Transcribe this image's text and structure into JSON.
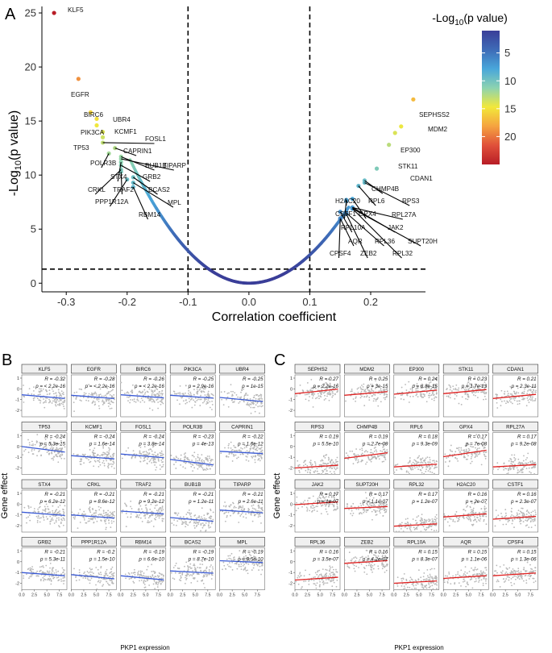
{
  "panel_labels": {
    "a": "A",
    "b": "B",
    "c": "C"
  },
  "colors": {
    "gradient": [
      "#3a3e98",
      "#3e6bb7",
      "#49a7da",
      "#8dd3b0",
      "#f2e83a",
      "#f5a340",
      "#e0503a",
      "#b81d26"
    ],
    "neg_fit": "#3b5bd6",
    "pos_fit": "#e02020",
    "points_small": "#b8b8b8",
    "curve_low": "#3a3e98",
    "curve_high": "#5bbfe5"
  },
  "chart_data": [
    {
      "panel": "A",
      "type": "scatter",
      "title": "",
      "xlabel": "Correlation coefficient",
      "ylabel_main": "-Log",
      "ylabel_sub": "10",
      "ylabel_rest": "(p value)",
      "xlim": [
        -0.34,
        0.29
      ],
      "ylim": [
        -0.8,
        25.6
      ],
      "x_ticks": [
        -0.3,
        -0.2,
        -0.1,
        0.0,
        0.1,
        0.2
      ],
      "x_tick_labels": [
        "-0.3",
        "-0.2",
        "-0.1",
        "0.0",
        "0.1",
        "0.2"
      ],
      "y_ticks": [
        0,
        5,
        10,
        15,
        20,
        25
      ],
      "y_tick_labels": [
        "0",
        "5",
        "10",
        "15",
        "20",
        "25"
      ],
      "vlines": [
        -0.1,
        0.1
      ],
      "hline": 1.3,
      "legend": {
        "title_main": "-Log",
        "title_sub": "10",
        "title_rest": "(p value)",
        "range": [
          1,
          25
        ],
        "ticks": [
          5,
          10,
          15,
          20
        ],
        "tick_labels": [
          "5",
          "10",
          "15",
          "20"
        ],
        "placement": "right"
      },
      "labeled_points": [
        {
          "label": "KLF5",
          "x": -0.32,
          "y": 25.0
        },
        {
          "label": "EGFR",
          "x": -0.28,
          "y": 18.9
        },
        {
          "label": "BIRC6",
          "x": -0.26,
          "y": 15.8
        },
        {
          "label": "UBR4",
          "x": -0.25,
          "y": 15.2
        },
        {
          "label": "PIK3CA",
          "x": -0.25,
          "y": 14.6
        },
        {
          "label": "KCMF1",
          "x": -0.24,
          "y": 14.0
        },
        {
          "label": "TP53",
          "x": -0.24,
          "y": 13.5
        },
        {
          "label": "FOSL1",
          "x": -0.24,
          "y": 13.0
        },
        {
          "label": "CAPRIN1",
          "x": -0.22,
          "y": 12.5
        },
        {
          "label": "POLR3B",
          "x": -0.23,
          "y": 12.0
        },
        {
          "label": "BUB1B",
          "x": -0.21,
          "y": 11.7
        },
        {
          "label": "TIPARP",
          "x": -0.21,
          "y": 11.5
        },
        {
          "label": "STX4",
          "x": -0.21,
          "y": 11.2
        },
        {
          "label": "GRB2",
          "x": -0.21,
          "y": 10.9
        },
        {
          "label": "CRKL",
          "x": -0.21,
          "y": 10.5
        },
        {
          "label": "TRAF2",
          "x": -0.21,
          "y": 10.3
        },
        {
          "label": "BCAS2",
          "x": -0.19,
          "y": 9.8
        },
        {
          "label": "PPP1R12A",
          "x": -0.2,
          "y": 9.6
        },
        {
          "label": "MPL",
          "x": -0.19,
          "y": 9.3
        },
        {
          "label": "RBM14",
          "x": -0.19,
          "y": 8.9
        },
        {
          "label": "SEPHSS2",
          "x": 0.27,
          "y": 17.0
        },
        {
          "label": "MDM2",
          "x": 0.25,
          "y": 14.5
        },
        {
          "label": "EP300",
          "x": 0.24,
          "y": 13.9
        },
        {
          "label": "STK11",
          "x": 0.23,
          "y": 12.8
        },
        {
          "label": "CDAN1",
          "x": 0.21,
          "y": 10.6
        },
        {
          "label": "CHMP4B",
          "x": 0.19,
          "y": 9.5
        },
        {
          "label": "RPS3",
          "x": 0.19,
          "y": 9.3
        },
        {
          "label": "RPL6",
          "x": 0.18,
          "y": 9.0
        },
        {
          "label": "H2AC20",
          "x": 0.16,
          "y": 7.7
        },
        {
          "label": "GPX4",
          "x": 0.17,
          "y": 7.8
        },
        {
          "label": "RPL27A",
          "x": 0.17,
          "y": 7.0
        },
        {
          "label": "CSTF1",
          "x": 0.16,
          "y": 7.6
        },
        {
          "label": "JAK2",
          "x": 0.17,
          "y": 7.0
        },
        {
          "label": "RPL10A",
          "x": 0.15,
          "y": 6.6
        },
        {
          "label": "RPL36",
          "x": 0.16,
          "y": 6.5
        },
        {
          "label": "SUPT20H",
          "x": 0.17,
          "y": 6.9
        },
        {
          "label": "AQR",
          "x": 0.15,
          "y": 6.0
        },
        {
          "label": "CPSF4",
          "x": 0.15,
          "y": 5.9
        },
        {
          "label": "ZEB2",
          "x": 0.16,
          "y": 6.4
        },
        {
          "label": "RPL32",
          "x": 0.17,
          "y": 6.9
        }
      ],
      "curve_model": "y = 305 * x^2 (approx, |x| < 0.2)"
    },
    {
      "panel": "B",
      "type": "scatter",
      "xlabel": "PKP1 expression",
      "ylabel": "Gene effect",
      "xlim": [
        0,
        9
      ],
      "x_ticks": [
        0,
        2.5,
        5,
        7.5
      ],
      "x_tick_labels": [
        "0.0",
        "2.5",
        "5.0",
        "7.5"
      ],
      "ylim": [
        -2.6,
        1.3
      ],
      "y_ticks": [
        -2,
        -1,
        0,
        1
      ],
      "y_tick_labels": [
        "-2",
        "-1",
        "0",
        "1"
      ],
      "fit_color": "neg",
      "facets": [
        {
          "gene": "KLF5",
          "r": "-0.32",
          "p": "< 2.2e-16",
          "ey": -0.55,
          "slope": -0.04
        },
        {
          "gene": "EGFR",
          "r": "-0.28",
          "p": "< 2.2e-16",
          "ey": -0.6,
          "slope": -0.035
        },
        {
          "gene": "BIRC6",
          "r": "-0.26",
          "p": "< 2.2e-16",
          "ey": -0.55,
          "slope": -0.033
        },
        {
          "gene": "PIK3CA",
          "r": "-0.25",
          "p": "2.9e-16",
          "ey": -0.6,
          "slope": -0.03
        },
        {
          "gene": "UBR4",
          "r": "-0.25",
          "p": "1e-15",
          "ey": -0.8,
          "slope": -0.045
        },
        {
          "gene": "TP53",
          "r": "-0.24",
          "p": "5.3e-15",
          "ey": 0.0,
          "slope": -0.06
        },
        {
          "gene": "KCMF1",
          "r": "-0.24",
          "p": "1.6e-14",
          "ey": -0.85,
          "slope": -0.035
        },
        {
          "gene": "FOSL1",
          "r": "-0.24",
          "p": "3.8e-14",
          "ey": -0.7,
          "slope": -0.04
        },
        {
          "gene": "POLR3B",
          "r": "-0.23",
          "p": "4e-13",
          "ey": -1.2,
          "slope": -0.06
        },
        {
          "gene": "CAPRIN1",
          "r": "-0.22",
          "p": "1.6e-12",
          "ey": -0.45,
          "slope": -0.025
        },
        {
          "gene": "STX4",
          "r": "-0.21",
          "p": "6.2e-12",
          "ey": -0.75,
          "slope": -0.035
        },
        {
          "gene": "CRKL",
          "r": "-0.21",
          "p": "8.6e-12",
          "ey": -1.0,
          "slope": -0.035
        },
        {
          "gene": "TRAF2",
          "r": "-0.21",
          "p": "9.2e-12",
          "ey": -0.65,
          "slope": -0.03
        },
        {
          "gene": "BUB1B",
          "r": "-0.21",
          "p": "1.2e-11",
          "ey": -1.25,
          "slope": -0.04
        },
        {
          "gene": "TIPARP",
          "r": "-0.21",
          "p": "2.6e-11",
          "ey": -0.55,
          "slope": -0.03
        },
        {
          "gene": "GRB2",
          "r": "-0.21",
          "p": "5.3e-11",
          "ey": -1.0,
          "slope": -0.035
        },
        {
          "gene": "PPP1R12A",
          "r": "-0.2",
          "p": "1.5e-10",
          "ey": -1.2,
          "slope": -0.045
        },
        {
          "gene": "RBM14",
          "r": "-0.19",
          "p": "6.6e-10",
          "ey": -1.3,
          "slope": -0.045
        },
        {
          "gene": "BCAS2",
          "r": "-0.19",
          "p": "8.7e-10",
          "ey": -0.85,
          "slope": -0.025
        },
        {
          "gene": "MPL",
          "r": "-0.19",
          "p": "9.5e-10",
          "ey": 0.1,
          "slope": -0.02
        }
      ]
    },
    {
      "panel": "C",
      "type": "scatter",
      "xlabel": "PKP1 expression",
      "ylabel": "Gene effect",
      "xlim": [
        0,
        9
      ],
      "x_ticks": [
        0,
        2.5,
        5,
        7.5
      ],
      "x_tick_labels": [
        "0.0",
        "2.5",
        "5.0",
        "7.5"
      ],
      "ylim": [
        -2.6,
        1.3
      ],
      "y_ticks": [
        -2,
        -1,
        0,
        1
      ],
      "y_tick_labels": [
        "-2",
        "-1",
        "0",
        "1"
      ],
      "fit_color": "pos",
      "facets": [
        {
          "gene": "SEPHS2",
          "r": "0.27",
          "p": "2.2e-16",
          "ey": -0.45,
          "slope": 0.05
        },
        {
          "gene": "MDM2",
          "r": "0.25",
          "p": "3e-15",
          "ey": -0.6,
          "slope": 0.04
        },
        {
          "gene": "EP300",
          "r": "0.24",
          "p": "8.8e-15",
          "ey": -0.5,
          "slope": 0.045
        },
        {
          "gene": "STK11",
          "r": "0.23",
          "p": "1.7e-13",
          "ey": -0.45,
          "slope": 0.045
        },
        {
          "gene": "CDAN1",
          "r": "0.21",
          "p": "2.3e-11",
          "ey": -0.9,
          "slope": 0.045
        },
        {
          "gene": "RPS3",
          "r": "0.19",
          "p": "5.5e-10",
          "ey": -2.0,
          "slope": 0.03
        },
        {
          "gene": "CHMP4B",
          "r": "0.19",
          "p": "2.7e-09",
          "ey": -1.1,
          "slope": 0.06
        },
        {
          "gene": "RPL6",
          "r": "0.18",
          "p": "9.3e-09",
          "ey": -1.9,
          "slope": 0.03
        },
        {
          "gene": "GPX4",
          "r": "0.17",
          "p": "7e-08",
          "ey": -0.95,
          "slope": 0.07
        },
        {
          "gene": "RPL27A",
          "r": "0.17",
          "p": "9.2e-08",
          "ey": -1.9,
          "slope": 0.025
        },
        {
          "gene": "JAK2",
          "r": "0.17",
          "p": "1e-07",
          "ey": -0.05,
          "slope": 0.03
        },
        {
          "gene": "SUPT20H",
          "r": "0.17",
          "p": "1.1e-07",
          "ey": -0.4,
          "slope": 0.02
        },
        {
          "gene": "RPL32",
          "r": "0.17",
          "p": "1.2e-07",
          "ey": -2.05,
          "slope": 0.025
        },
        {
          "gene": "H2AC20",
          "r": "0.16",
          "p": "2e-07",
          "ey": -1.2,
          "slope": 0.035
        },
        {
          "gene": "CSTF1",
          "r": "0.16",
          "p": "2.3e-07",
          "ey": -1.4,
          "slope": 0.03
        },
        {
          "gene": "RPL36",
          "r": "0.16",
          "p": "3.5e-07",
          "ey": -1.7,
          "slope": 0.03
        },
        {
          "gene": "ZEB2",
          "r": "0.16",
          "p": "4.2e-07",
          "ey": -0.15,
          "slope": 0.03
        },
        {
          "gene": "RPL10A",
          "r": "0.15",
          "p": "8.3e-07",
          "ey": -2.0,
          "slope": 0.025
        },
        {
          "gene": "AQR",
          "r": "0.15",
          "p": "1.1e-06",
          "ey": -1.55,
          "slope": 0.03
        },
        {
          "gene": "CPSF4",
          "r": "0.15",
          "p": "1.3e-06",
          "ey": -1.3,
          "slope": 0.03
        }
      ]
    }
  ]
}
